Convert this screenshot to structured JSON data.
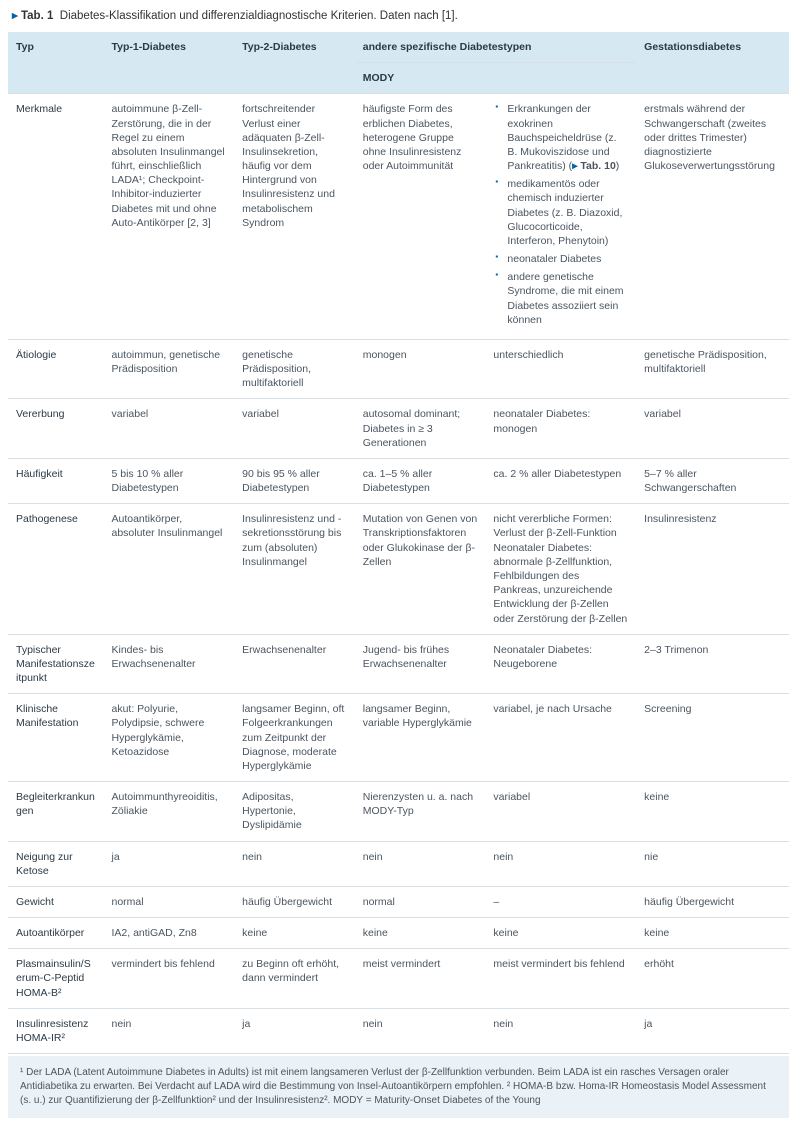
{
  "caption": {
    "prefix": "▸ Tab. 1",
    "text": "Diabetes-Klassifikation und differenzialdiagnostische Kriterien. Daten nach [1]."
  },
  "headers": {
    "typ": "Typ",
    "t1": "Typ-1-Diabetes",
    "t2": "Typ-2-Diabetes",
    "other": "andere spezifische Diabetestypen",
    "mody": "MODY",
    "blank": "",
    "gest": "Gestationsdiabetes"
  },
  "rows": {
    "merkmale": {
      "label": "Merkmale",
      "t1": "autoimmune β-Zell-Zerstörung, die in der Regel zu einem absoluten Insulinmangel führt, einschließlich LADA¹; Checkpoint-Inhibitor-induzierter Diabetes mit und ohne Auto-Antikörper [2, 3]",
      "t2": "fortschreitender Verlust einer adäquaten β-Zell-Insulinsekretion, häufig vor dem Hintergrund von Insulinresistenz und metabolischem Syndrom",
      "mody": "häufigste Form des erblichen Diabetes, heterogene Gruppe ohne Insulinresistenz oder Autoimmunität",
      "other_bullets": [
        "Erkrankungen der exokrinen Bauchspeicheldrüse (z. B. Mukoviszidose und Pankreatitis) (▸ Tab. 10)",
        "medikamentös oder chemisch induzierter Diabetes (z. B. Diazoxid, Glucocorticoide, Interferon, Phenytoin)",
        "neonataler Diabetes",
        "andere genetische Syndrome, die mit einem Diabetes assoziiert sein können"
      ],
      "gest": "erstmals während der Schwangerschaft (zweites oder drittes Trimester) diagnostizierte Glukoseverwertungsstörung"
    },
    "aetiologie": {
      "label": "Ätiologie",
      "t1": "autoimmun, genetische Prädisposition",
      "t2": "genetische Prädisposition, multifaktoriell",
      "mody": "monogen",
      "other": "unterschiedlich",
      "gest": "genetische Prädisposition, multifaktoriell"
    },
    "vererbung": {
      "label": "Vererbung",
      "t1": "variabel",
      "t2": "variabel",
      "mody": "autosomal dominant; Diabetes in ≥ 3 Generationen",
      "other": "neonataler Diabetes: monogen",
      "gest": "variabel"
    },
    "haeufigkeit": {
      "label": "Häufigkeit",
      "t1": "5 bis 10 % aller Diabetestypen",
      "t2": "90 bis 95 % aller Diabetestypen",
      "mody": "ca. 1–5 % aller Diabetestypen",
      "other": "ca. 2 % aller Diabetestypen",
      "gest": "5–7 % aller Schwangerschaften"
    },
    "pathogenese": {
      "label": "Pathogenese",
      "t1": "Autoantikörper, absoluter Insulinmangel",
      "t2": "Insulinresistenz und -sekretionsstörung bis zum (absoluten) Insulinmangel",
      "mody": "Mutation von Genen von Transkriptionsfaktoren oder Glukokinase der β-Zellen",
      "other": "nicht vererbliche Formen: Verlust der β-Zell-Funktion Neonataler Diabetes: abnormale β-Zellfunktion, Fehlbildungen des Pankreas, unzureichende Entwicklung der β-Zellen oder Zerstörung der β-Zellen",
      "gest": "Insulinresistenz"
    },
    "manifest_zeit": {
      "label": "Typischer Manifestationszeitpunkt",
      "t1": "Kindes- bis Erwachsenenalter",
      "t2": "Erwachsenenalter",
      "mody": "Jugend- bis frühes Erwachsenenalter",
      "other": "Neonataler Diabetes: Neugeborene",
      "gest": "2–3 Trimenon"
    },
    "klin_manifest": {
      "label": "Klinische Manifestation",
      "t1": "akut: Polyurie, Polydipsie, schwere Hyperglykämie, Ketoazidose",
      "t2": "langsamer Beginn, oft Folgeerkrankungen zum Zeitpunkt der Diagnose, moderate Hyperglykämie",
      "mody": "langsamer Beginn, variable Hyperglykämie",
      "other": "variabel, je nach Ursache",
      "gest": "Screening"
    },
    "begleit": {
      "label": "Begleiterkrankungen",
      "t1": "Autoimmunthyreoiditis, Zöliakie",
      "t2": "Adipositas, Hypertonie, Dyslipidämie",
      "mody": "Nierenzysten u. a. nach MODY-Typ",
      "other": "variabel",
      "gest": "keine"
    },
    "ketose": {
      "label": "Neigung zur Ketose",
      "t1": "ja",
      "t2": "nein",
      "mody": "nein",
      "other": "nein",
      "gest": "nie"
    },
    "gewicht": {
      "label": "Gewicht",
      "t1": "normal",
      "t2": "häufig Übergewicht",
      "mody": "normal",
      "other": "–",
      "gest": "häufig Übergewicht"
    },
    "autoak": {
      "label": "Autoantikörper",
      "t1": "IA2, antiGAD, Zn8",
      "t2": "keine",
      "mody": "keine",
      "other": "keine",
      "gest": "keine"
    },
    "plasma": {
      "label": "Plasmainsulin/Serum-C-Peptid HOMA-B²",
      "t1": "vermindert bis fehlend",
      "t2": "zu Beginn oft erhöht, dann vermindert",
      "mody": "meist vermindert",
      "other": "meist vermindert bis fehlend",
      "gest": "erhöht"
    },
    "homair": {
      "label": "Insulinresistenz HOMA-IR²",
      "t1": "nein",
      "t2": "ja",
      "mody": "nein",
      "other": "nein",
      "gest": "ja"
    }
  },
  "footnote": "¹ Der LADA (Latent Autoimmune Diabetes in Adults) ist mit einem langsameren Verlust der β-Zellfunktion verbunden. Beim LADA ist ein rasches Versagen oraler Antidiabetika zu erwarten. Bei Verdacht auf LADA wird die Bestimmung von Insel-Autoantikörpern empfohlen. ² HOMA-B bzw. Homa-IR Homeostasis Model Assessment (s. u.) zur Quantifizierung der β-Zellfunktion² und der Insulinresistenz². MODY = Maturity-Onset Diabetes of the Young",
  "colors": {
    "header_bg": "#d6e8f1",
    "border": "#d8dfe5",
    "accent": "#0066a8",
    "text": "#4a5560",
    "footnote_bg": "#eaf2f7"
  }
}
